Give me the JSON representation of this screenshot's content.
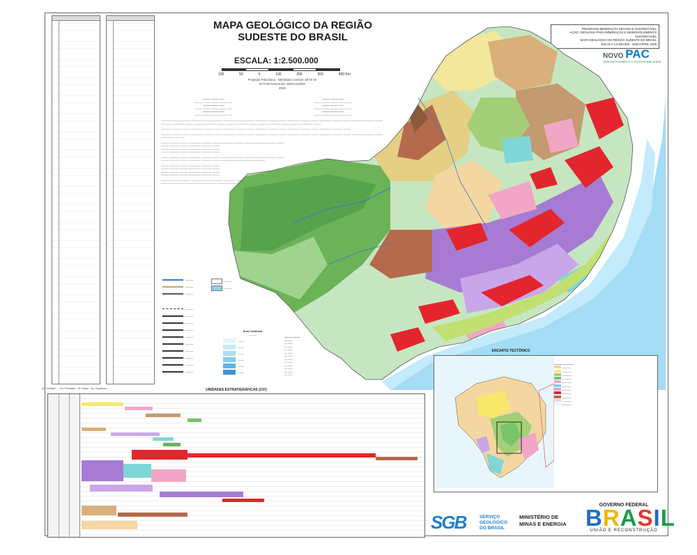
{
  "header": {
    "title_line1": "MAPA GEOLÓGICO DA REGIÃO",
    "title_line2": "SUDESTE DO BRASIL",
    "scale": "ESCALA: 1:2.500.000",
    "scale_ticks": [
      "100",
      "50",
      "0",
      "100",
      "200",
      "300",
      "400 Km"
    ],
    "projection": "Projeção Policônica · Meridiano Central: 48°W Gr",
    "datum": "DATUM horizontal: SIRGAS2000",
    "year": "2025"
  },
  "program_box": {
    "line1": "PROGRAMA MINERAÇÃO SEGURA E SUSTENTÁVEL",
    "line2": "AÇÃO: GEOLOGIA PARA MINERAÇÃO E DESENVOLVIMENTO SUSTENTÁVEL",
    "line3": "MAPA GEOLÓGICO DA REGIÃO SUDESTE DO BRASIL",
    "line4": "ESCALA 1:2.500.000 · SGB-CPRM, 2025"
  },
  "novo_pac": {
    "word1": "NOVO",
    "word2": "PAC",
    "tagline": "DESENVOLVIMENTO E SUSTENTABILIDADE"
  },
  "sections": {
    "tectonic_inset_title": "ENCARTE TECTÔNICO",
    "strat_title": "UNIDADES ESTRATIGRÁFICAS (237)",
    "oceanic_area_title": "Área Oceânica"
  },
  "logos": {
    "sgb_mark": "SGB",
    "sgb_line1": "SERVIÇO",
    "sgb_line2": "GEOLÓGICO",
    "sgb_line3": "DO BRASIL",
    "mme_line1": "MINISTÉRIO DE",
    "mme_line2": "MINAS E ENERGIA",
    "gov_line1": "GOVERNO FEDERAL",
    "gov_letters": [
      "B",
      "R",
      "A",
      "S",
      "I",
      "L"
    ],
    "gov_line3": "UNIÃO E RECONSTRUÇÃO"
  },
  "colors": {
    "ocean": "#8fd3f2",
    "red_granite": "#e3262d",
    "green_basin": "#6cb257",
    "paraná_light": "#c6e6c2",
    "tan": "#d9b07a",
    "purple": "#a77bd3",
    "pink": "#f2a6c6",
    "yellow": "#f7e86a",
    "cyan": "#7fd6d6",
    "brown": "#b46a4b"
  }
}
